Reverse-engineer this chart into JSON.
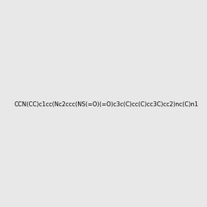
{
  "smiles": "CCN(CC)c1cc(Nc2ccc(NS(=O)(=O)c3c(C)cc(C)cc3C)cc2)nc(C)n1",
  "image_size": 300,
  "background_color": "#e8e8e8",
  "atom_colors": {
    "N": "#0000ff",
    "O": "#ff0000",
    "S": "#cccc00",
    "C": "#006060",
    "H_label": "#4a8080"
  },
  "bond_color": "#006060",
  "title": ""
}
